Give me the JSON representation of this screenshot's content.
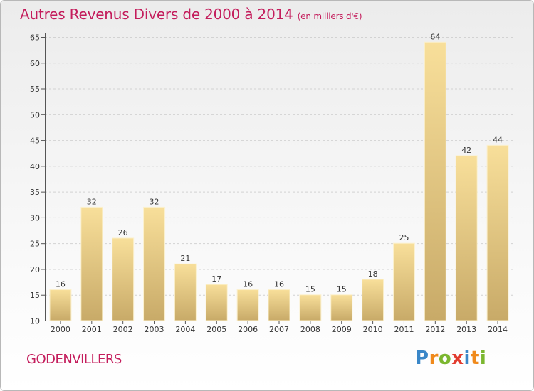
{
  "header": {
    "title": "Autres Revenus Divers de 2000 à 2014",
    "subtitle": "(en milliers d'€)"
  },
  "footer": {
    "location": "GODENVILLERS",
    "logo": {
      "letters": [
        "P",
        "r",
        "o",
        "x",
        "i",
        "t",
        "i"
      ],
      "colors": [
        "#3a87c8",
        "#f08a1c",
        "#7bb72f",
        "#e23b2e",
        "#3a87c8",
        "#f08a1c",
        "#7bb72f"
      ]
    }
  },
  "colors": {
    "title": "#c41d5c",
    "bar_light": "#f8df9a",
    "bar_dark": "#c8aa68",
    "grid": "#d2d2d2"
  },
  "chart_data": {
    "type": "bar",
    "title": "Autres Revenus Divers de 2000 à 2014",
    "subtitle": "(en milliers d'€)",
    "categories": [
      "2000",
      "2001",
      "2002",
      "2003",
      "2004",
      "2005",
      "2006",
      "2007",
      "2008",
      "2009",
      "2010",
      "2011",
      "2012",
      "2013",
      "2014"
    ],
    "values": [
      16,
      32,
      26,
      32,
      21,
      17,
      16,
      16,
      15,
      15,
      18,
      25,
      64,
      42,
      44
    ],
    "ylim": [
      10,
      65
    ],
    "yticks": [
      10,
      15,
      20,
      25,
      30,
      35,
      40,
      45,
      50,
      55,
      60,
      65
    ],
    "grid": "horizontal dashed",
    "legend": "none"
  }
}
